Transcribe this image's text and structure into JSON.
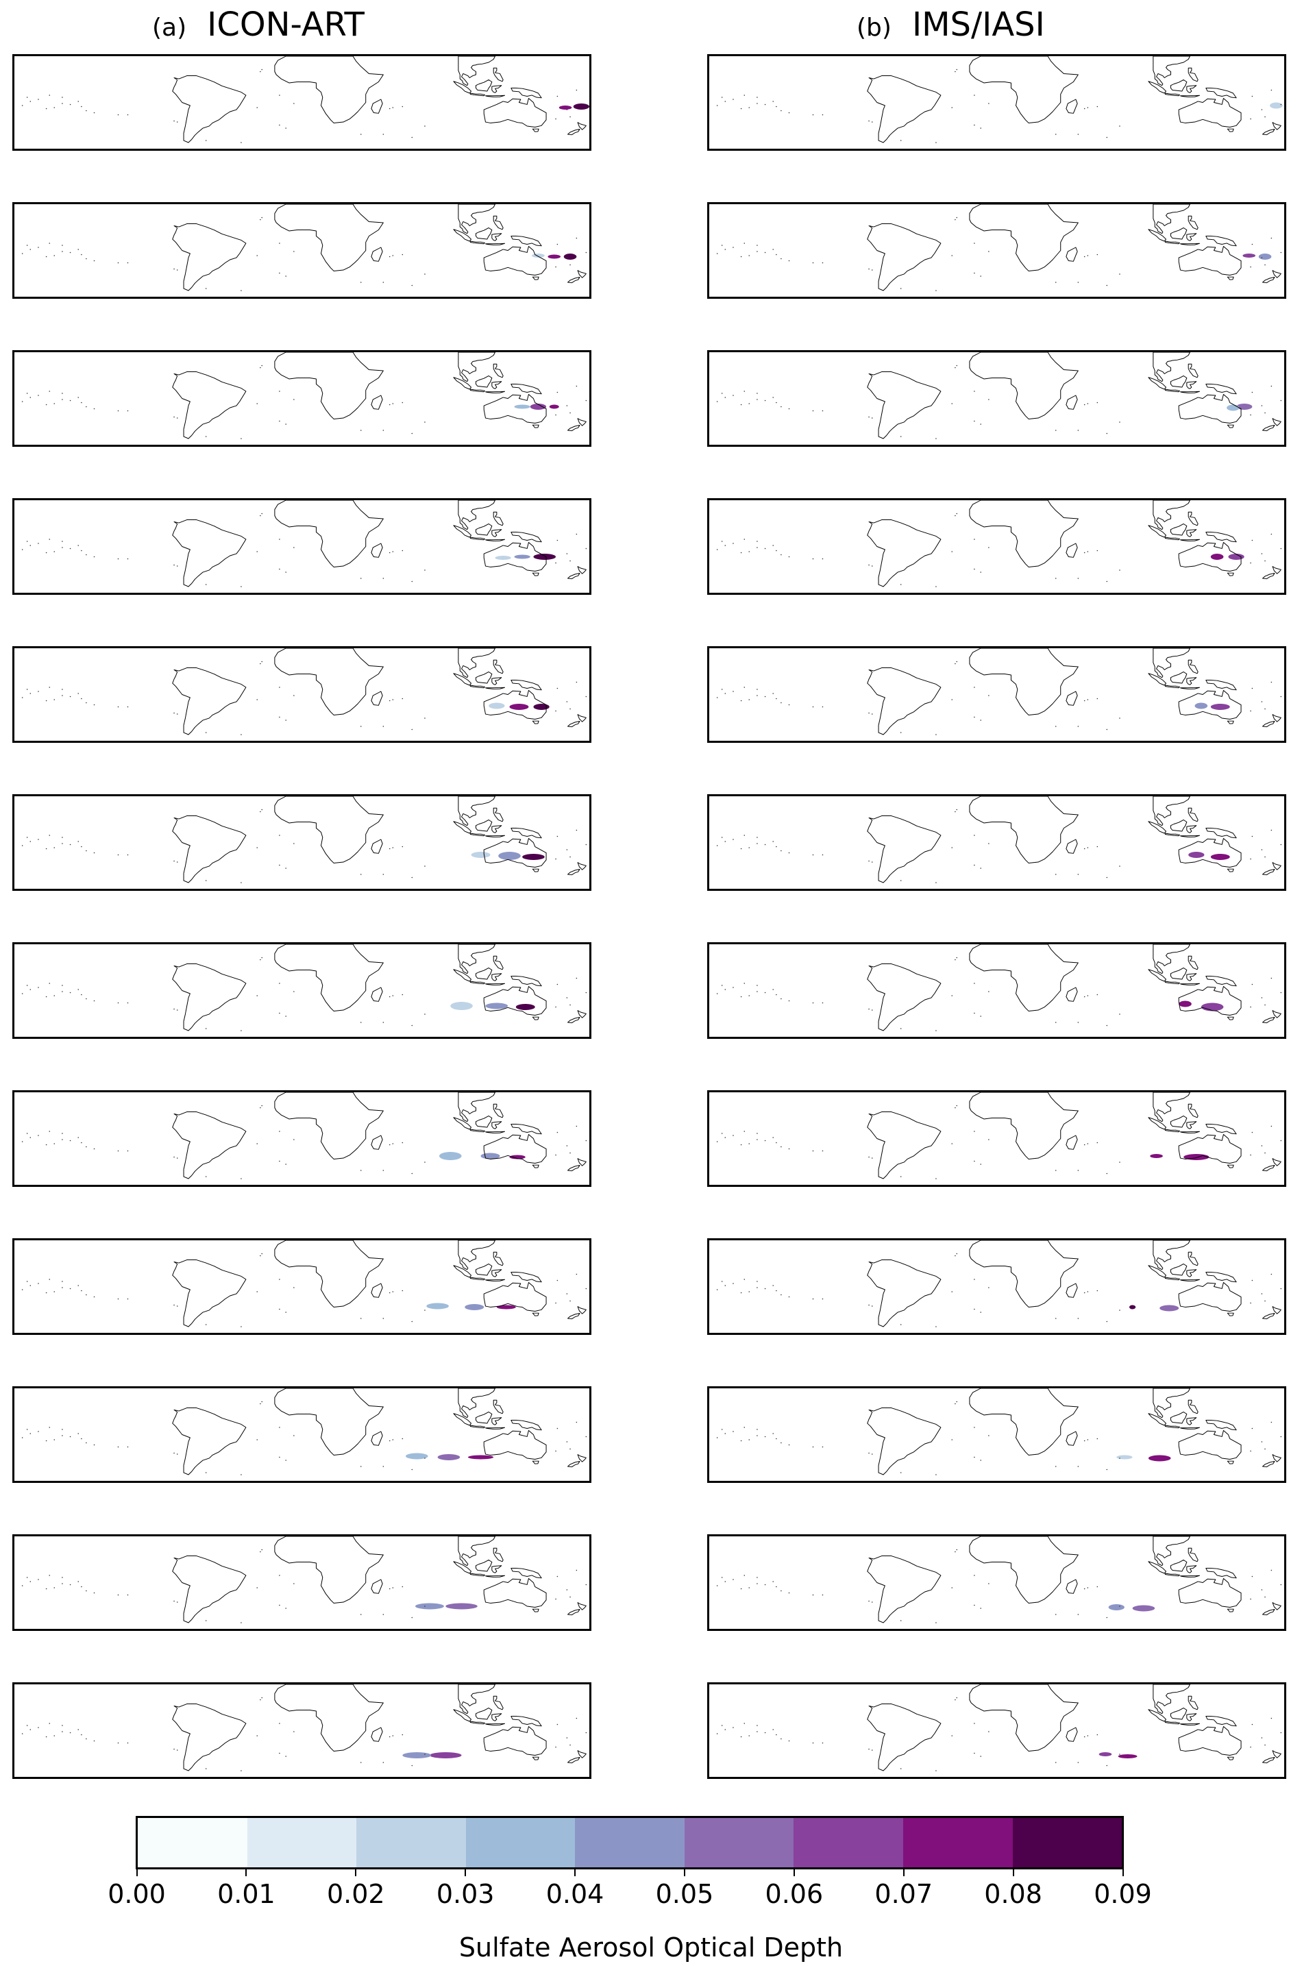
{
  "columns": [
    {
      "tag": "(a)",
      "title": "ICON-ART"
    },
    {
      "tag": "(b)",
      "title": "IMS/IASI"
    }
  ],
  "map": {
    "projection": "equirectangular",
    "lon_range": [
      -180,
      180
    ],
    "lat_range": [
      -60,
      30
    ],
    "coastline_color": "#000000"
  },
  "colorbar": {
    "label": "Sulfate Aerosol Optical Depth",
    "ticks": [
      "0.00",
      "0.01",
      "0.02",
      "0.03",
      "0.04",
      "0.05",
      "0.06",
      "0.07",
      "0.08",
      "0.09"
    ],
    "colors": [
      "#f7fcfd",
      "#dfebf4",
      "#bfd3e6",
      "#9ebcda",
      "#8c96c6",
      "#8c6bb1",
      "#88419d",
      "#810f7c",
      "#4d004b"
    ]
  },
  "chart_data": {
    "type": "heatmap",
    "colorbar_label": "Sulfate Aerosol Optical Depth",
    "value_range": [
      0.0,
      0.09
    ],
    "panels": {
      "icon_art": [
        [
          {
            "lon": 175,
            "lat": -19,
            "rx": 5,
            "ry": 3,
            "aod": 0.085
          },
          {
            "lon": 165,
            "lat": -20,
            "rx": 4,
            "ry": 2,
            "aod": 0.07
          }
        ],
        [
          {
            "lon": 168,
            "lat": -21,
            "rx": 4,
            "ry": 3,
            "aod": 0.085
          },
          {
            "lon": 158,
            "lat": -21,
            "rx": 4,
            "ry": 2,
            "aod": 0.075
          },
          {
            "lon": 148,
            "lat": -20,
            "rx": 4,
            "ry": 2,
            "aod": 0.025
          }
        ],
        [
          {
            "lon": 158,
            "lat": -23,
            "rx": 3,
            "ry": 2,
            "aod": 0.07
          },
          {
            "lon": 148,
            "lat": -23,
            "rx": 5,
            "ry": 3,
            "aod": 0.065
          },
          {
            "lon": 138,
            "lat": -23,
            "rx": 5,
            "ry": 2,
            "aod": 0.035
          }
        ],
        [
          {
            "lon": 152,
            "lat": -25,
            "rx": 7,
            "ry": 3,
            "aod": 0.08
          },
          {
            "lon": 138,
            "lat": -25,
            "rx": 5,
            "ry": 2,
            "aod": 0.04
          },
          {
            "lon": 126,
            "lat": -26,
            "rx": 5,
            "ry": 2,
            "aod": 0.025
          }
        ],
        [
          {
            "lon": 150,
            "lat": -27,
            "rx": 5,
            "ry": 3,
            "aod": 0.08
          },
          {
            "lon": 136,
            "lat": -27,
            "rx": 6,
            "ry": 3,
            "aod": 0.07
          },
          {
            "lon": 122,
            "lat": -26,
            "rx": 5,
            "ry": 3,
            "aod": 0.025
          }
        ],
        [
          {
            "lon": 145,
            "lat": -29,
            "rx": 7,
            "ry": 3,
            "aod": 0.08
          },
          {
            "lon": 130,
            "lat": -28,
            "rx": 7,
            "ry": 4,
            "aod": 0.045
          },
          {
            "lon": 112,
            "lat": -27,
            "rx": 6,
            "ry": 3,
            "aod": 0.02
          }
        ],
        [
          {
            "lon": 140,
            "lat": -31,
            "rx": 6,
            "ry": 3,
            "aod": 0.085
          },
          {
            "lon": 122,
            "lat": -30,
            "rx": 7,
            "ry": 3,
            "aod": 0.04
          },
          {
            "lon": 100,
            "lat": -30,
            "rx": 7,
            "ry": 4,
            "aod": 0.025
          }
        ],
        [
          {
            "lon": 135,
            "lat": -33,
            "rx": 5,
            "ry": 2,
            "aod": 0.075
          },
          {
            "lon": 118,
            "lat": -32,
            "rx": 6,
            "ry": 3,
            "aod": 0.045
          },
          {
            "lon": 93,
            "lat": -32,
            "rx": 7,
            "ry": 4,
            "aod": 0.035
          }
        ],
        [
          {
            "lon": 128,
            "lat": -35,
            "rx": 6,
            "ry": 2,
            "aod": 0.07
          },
          {
            "lon": 108,
            "lat": -35,
            "rx": 6,
            "ry": 3,
            "aod": 0.045
          },
          {
            "lon": 85,
            "lat": -34,
            "rx": 7,
            "ry": 3,
            "aod": 0.03
          }
        ],
        [
          {
            "lon": 112,
            "lat": -37,
            "rx": 8,
            "ry": 2,
            "aod": 0.07
          },
          {
            "lon": 92,
            "lat": -37,
            "rx": 7,
            "ry": 3,
            "aod": 0.05
          },
          {
            "lon": 72,
            "lat": -36,
            "rx": 7,
            "ry": 3,
            "aod": 0.035
          }
        ],
        [
          {
            "lon": 100,
            "lat": -38,
            "rx": 10,
            "ry": 3,
            "aod": 0.05
          },
          {
            "lon": 80,
            "lat": -38,
            "rx": 9,
            "ry": 3,
            "aod": 0.04
          }
        ],
        [
          {
            "lon": 90,
            "lat": -39,
            "rx": 10,
            "ry": 3,
            "aod": 0.06
          },
          {
            "lon": 72,
            "lat": -39,
            "rx": 9,
            "ry": 3,
            "aod": 0.045
          }
        ]
      ],
      "ims_iasi": [
        [
          {
            "lon": 175,
            "lat": -18,
            "rx": 4,
            "ry": 3,
            "aod": 0.02
          }
        ],
        [
          {
            "lon": 168,
            "lat": -21,
            "rx": 4,
            "ry": 3,
            "aod": 0.045
          },
          {
            "lon": 158,
            "lat": -20,
            "rx": 4,
            "ry": 2,
            "aod": 0.06
          }
        ],
        [
          {
            "lon": 155,
            "lat": -23,
            "rx": 5,
            "ry": 3,
            "aod": 0.05
          },
          {
            "lon": 148,
            "lat": -24,
            "rx": 4,
            "ry": 3,
            "aod": 0.035
          }
        ],
        [
          {
            "lon": 150,
            "lat": -25,
            "rx": 5,
            "ry": 3,
            "aod": 0.06
          },
          {
            "lon": 138,
            "lat": -25,
            "rx": 4,
            "ry": 3,
            "aod": 0.07
          }
        ],
        [
          {
            "lon": 140,
            "lat": -27,
            "rx": 6,
            "ry": 3,
            "aod": 0.06
          },
          {
            "lon": 128,
            "lat": -26,
            "rx": 4,
            "ry": 3,
            "aod": 0.045
          }
        ],
        [
          {
            "lon": 140,
            "lat": -29,
            "rx": 6,
            "ry": 3,
            "aod": 0.075
          },
          {
            "lon": 125,
            "lat": -27,
            "rx": 5,
            "ry": 3,
            "aod": 0.065
          }
        ],
        [
          {
            "lon": 135,
            "lat": -31,
            "rx": 7,
            "ry": 4,
            "aod": 0.06
          },
          {
            "lon": 118,
            "lat": -28,
            "rx": 4,
            "ry": 3,
            "aod": 0.07
          }
        ],
        [
          {
            "lon": 125,
            "lat": -33,
            "rx": 8,
            "ry": 3,
            "aod": 0.07
          },
          {
            "lon": 100,
            "lat": -32,
            "rx": 4,
            "ry": 2,
            "aod": 0.07
          }
        ],
        [
          {
            "lon": 108,
            "lat": -36,
            "rx": 6,
            "ry": 3,
            "aod": 0.05
          },
          {
            "lon": 85,
            "lat": -35,
            "rx": 2,
            "ry": 2,
            "aod": 0.08
          }
        ],
        [
          {
            "lon": 102,
            "lat": -38,
            "rx": 7,
            "ry": 3,
            "aod": 0.075
          },
          {
            "lon": 80,
            "lat": -37,
            "rx": 5,
            "ry": 2,
            "aod": 0.02
          }
        ],
        [
          {
            "lon": 92,
            "lat": -40,
            "rx": 7,
            "ry": 3,
            "aod": 0.05
          },
          {
            "lon": 75,
            "lat": -39,
            "rx": 5,
            "ry": 3,
            "aod": 0.04
          }
        ],
        [
          {
            "lon": 82,
            "lat": -40,
            "rx": 6,
            "ry": 2,
            "aod": 0.07
          },
          {
            "lon": 68,
            "lat": -38,
            "rx": 4,
            "ry": 2,
            "aod": 0.06
          }
        ]
      ]
    }
  }
}
